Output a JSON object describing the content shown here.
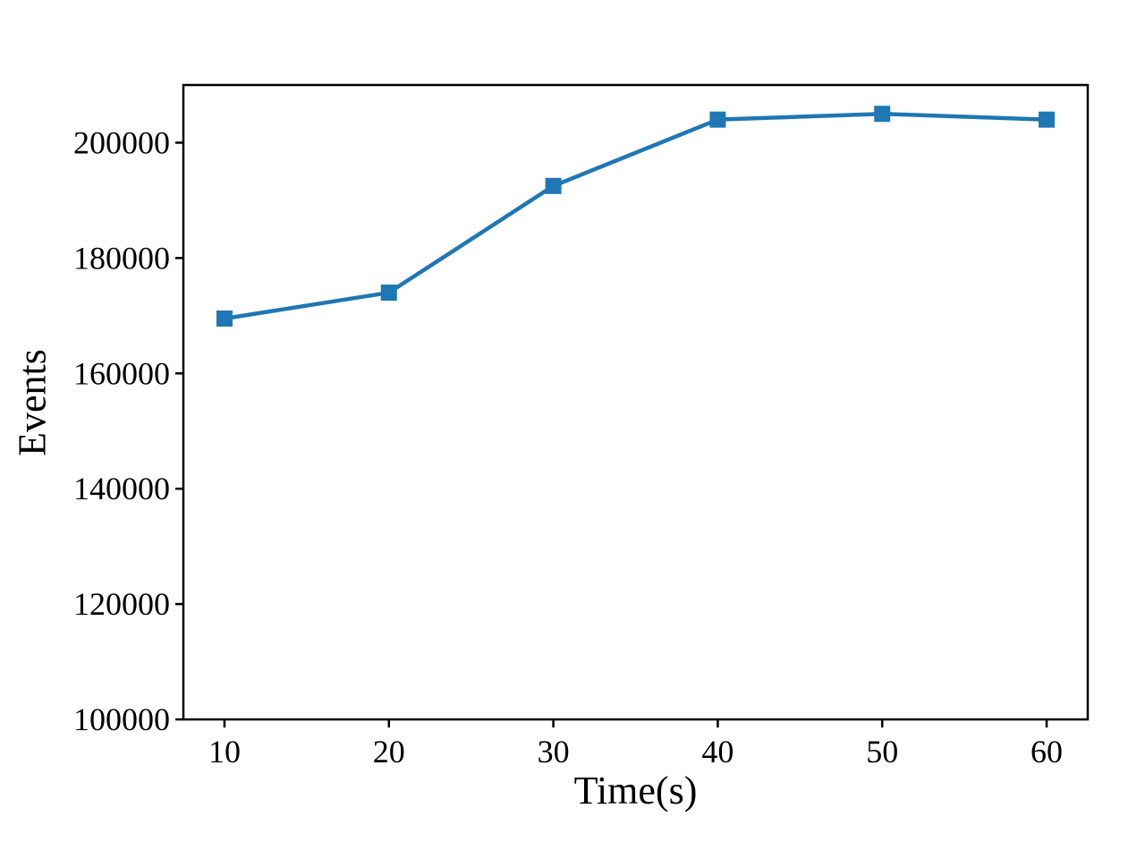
{
  "figure": {
    "background": "#ffffff"
  },
  "chart_data": {
    "type": "line",
    "title": "",
    "xlabel": "Time(s)",
    "ylabel": "Events",
    "xlim": [
      7.5,
      62.5
    ],
    "ylim": [
      100000,
      210000
    ],
    "xticks": [
      10,
      20,
      30,
      40,
      50,
      60
    ],
    "yticks": [
      100000,
      120000,
      140000,
      160000,
      180000,
      200000
    ],
    "grid": false,
    "legend": "none",
    "series": [
      {
        "name": "events",
        "x": [
          10,
          20,
          30,
          40,
          50,
          60
        ],
        "y": [
          169500,
          174000,
          192500,
          204000,
          205000,
          204000
        ],
        "color": "#1f77b4",
        "marker": "square",
        "line_style": "solid"
      }
    ],
    "spine_color": "#000000"
  }
}
